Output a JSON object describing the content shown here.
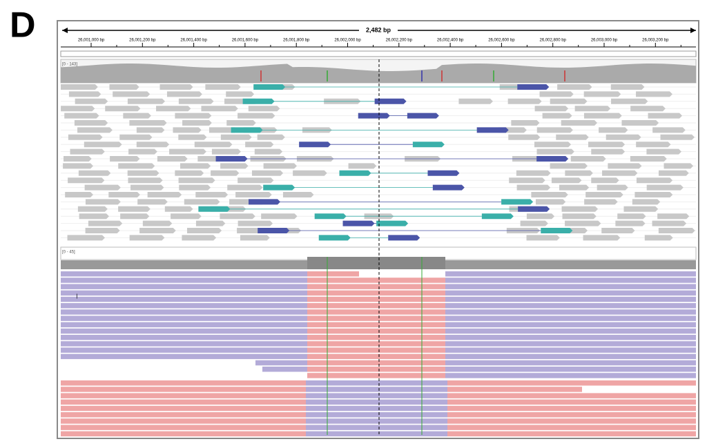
{
  "panel_label": "D",
  "ruler": {
    "span": "2,482 bp",
    "labels": [
      "26,001,000 bp",
      "26,001,200 bp",
      "26,001,400 bp",
      "26,001,600 bp",
      "26,001,800 bp",
      "26,002,000 bp",
      "26,002,200 bp",
      "26,002,400 bp",
      "26,002,600 bp",
      "26,002,800 bp",
      "26,003,000 bp",
      "26,003,200 bp"
    ]
  },
  "tracks": [
    {
      "range": "[0 - 143]"
    },
    {
      "range": "[0 - 45]"
    }
  ]
}
